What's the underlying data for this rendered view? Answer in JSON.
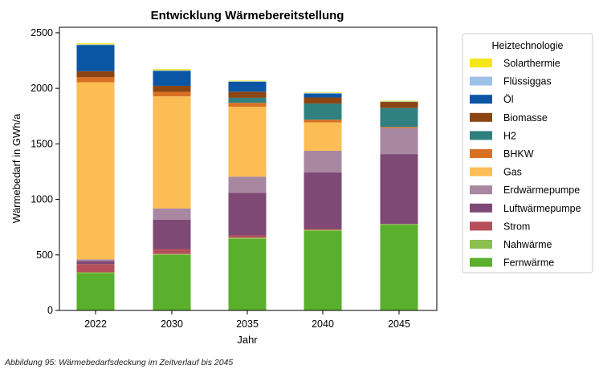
{
  "chart_data": {
    "type": "bar",
    "stacked": true,
    "title": "Entwicklung Wärmebereitstellung",
    "xlabel": "Jahr",
    "ylabel": "Wärmebedarf in GWh/a",
    "ylim": [
      0,
      2550
    ],
    "yticks": [
      0,
      500,
      1000,
      1500,
      2000,
      2500
    ],
    "categories": [
      "2022",
      "2030",
      "2035",
      "2040",
      "2045"
    ],
    "grid": false,
    "legend_position": "right",
    "legend_title": "Heiztechnologie",
    "series": [
      {
        "name": "Fernwärme",
        "color": "#5aaf2c",
        "values": [
          335,
          500,
          645,
          715,
          770
        ]
      },
      {
        "name": "Nahwärme",
        "color": "#8cc04f",
        "values": [
          8,
          8,
          10,
          10,
          8
        ]
      },
      {
        "name": "Strom",
        "color": "#b5505a",
        "values": [
          75,
          45,
          20,
          8,
          0
        ]
      },
      {
        "name": "Luftwärmepumpe",
        "color": "#7e4a75",
        "values": [
          27,
          265,
          385,
          510,
          630
        ]
      },
      {
        "name": "Erdwärmepumpe",
        "color": "#a887a0",
        "values": [
          15,
          100,
          145,
          195,
          235
        ]
      },
      {
        "name": "Gas",
        "color": "#fbbd54",
        "values": [
          1595,
          1010,
          630,
          255,
          0
        ]
      },
      {
        "name": "BHKW",
        "color": "#d97124",
        "values": [
          45,
          40,
          35,
          25,
          10
        ]
      },
      {
        "name": "H2",
        "color": "#308080",
        "values": [
          0,
          0,
          45,
          145,
          170
        ]
      },
      {
        "name": "Biomasse",
        "color": "#8b4513",
        "values": [
          55,
          55,
          55,
          55,
          55
        ]
      },
      {
        "name": "Öl",
        "color": "#0a56a5",
        "values": [
          235,
          135,
          90,
          35,
          0
        ]
      },
      {
        "name": "Flüssiggas",
        "color": "#9ec1e8",
        "values": [
          5,
          5,
          5,
          5,
          5
        ]
      },
      {
        "name": "Solarthermie",
        "color": "#f5e617",
        "values": [
          10,
          10,
          5,
          5,
          5
        ]
      }
    ]
  },
  "caption": "Abbildung 95: Wärmebedarfsdeckung im Zeitverlauf bis 2045"
}
